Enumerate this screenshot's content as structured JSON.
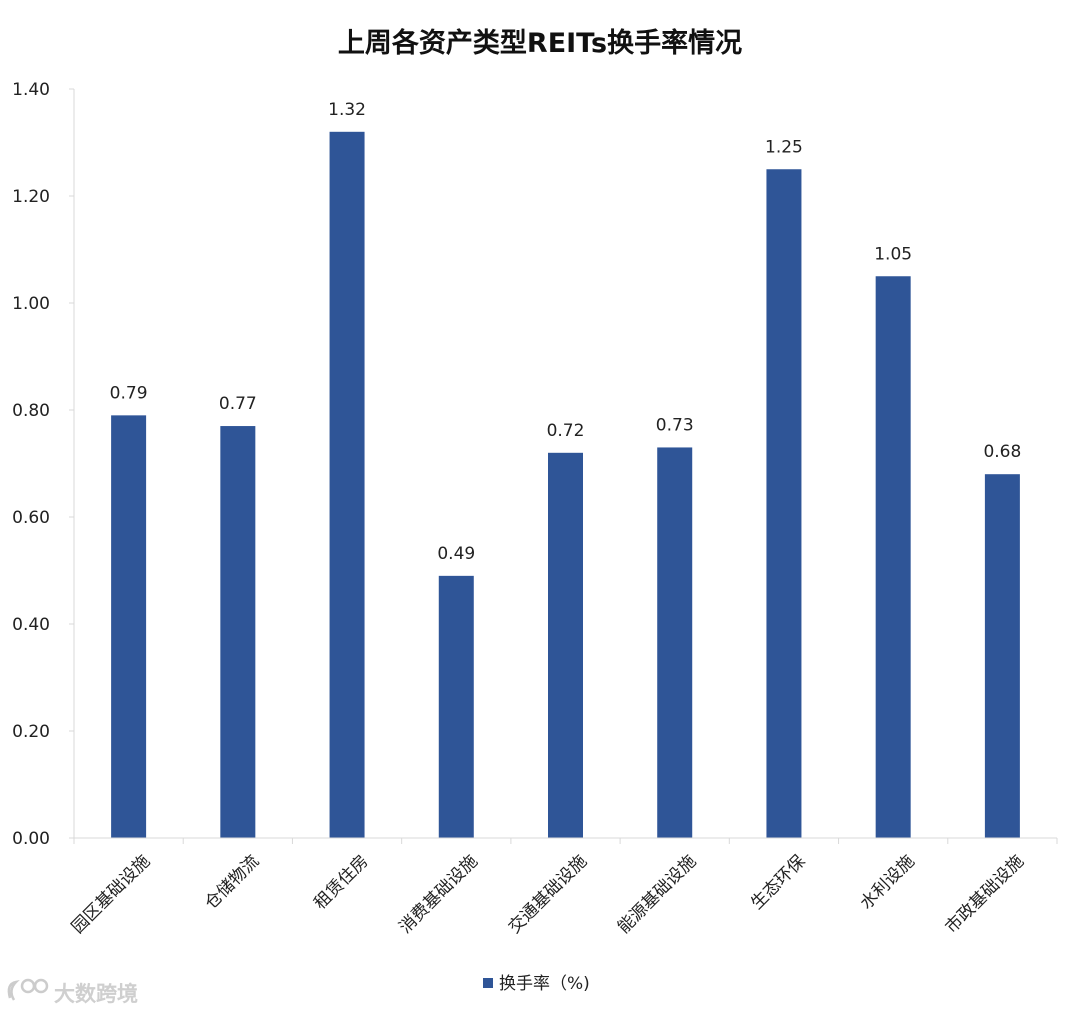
{
  "chart_data": {
    "type": "bar",
    "title": "上周各资产类型REITs换手率情况",
    "categories": [
      "园区基础设施",
      "仓储物流",
      "租赁住房",
      "消费基础设施",
      "交通基础设施",
      "能源基础设施",
      "生态环保",
      "水利设施",
      "市政基础设施"
    ],
    "series": [
      {
        "name": "换手率（%)",
        "values": [
          0.79,
          0.77,
          1.32,
          0.49,
          0.72,
          0.73,
          1.25,
          1.05,
          0.68
        ],
        "color": "#2f5597"
      }
    ],
    "data_labels": [
      "0.79",
      "0.77",
      "1.32",
      "0.49",
      "0.72",
      "0.73",
      "1.25",
      "1.05",
      "0.68"
    ],
    "xlabel": "",
    "ylabel": "",
    "ylim": [
      0,
      1.4
    ],
    "y_ticks": [
      "0.00",
      "0.20",
      "0.40",
      "0.60",
      "0.80",
      "1.00",
      "1.20",
      "1.40"
    ],
    "grid": false,
    "legend_position": "bottom"
  },
  "watermark": {
    "text": "大数跨境",
    "icon": "watermark-logo-icon"
  }
}
